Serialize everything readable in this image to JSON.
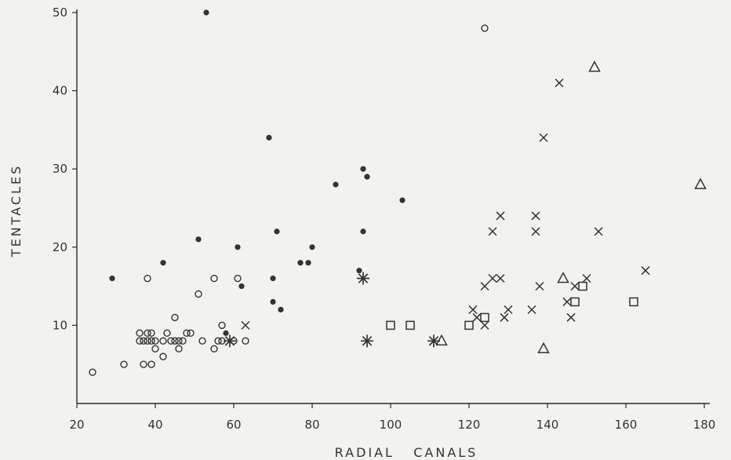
{
  "chart_data": {
    "type": "scatter",
    "title": "",
    "xlabel": "RADIAL   CANALS",
    "ylabel": "TENTACLES",
    "xlim": [
      20,
      180
    ],
    "ylim": [
      0,
      50
    ],
    "xticks": [
      "20",
      "40",
      "60",
      "80",
      "100",
      "120",
      "140",
      "160",
      "180"
    ],
    "yticks": [
      "10",
      "20",
      "30",
      "40",
      "50"
    ],
    "grid": false,
    "legend": "none",
    "color": "#333333",
    "series": [
      {
        "marker": "filled-circle",
        "points": [
          [
            29,
            16
          ],
          [
            42,
            18
          ],
          [
            51,
            21
          ],
          [
            53,
            50
          ],
          [
            58,
            9
          ],
          [
            61,
            20
          ],
          [
            62,
            15
          ],
          [
            69,
            34
          ],
          [
            70,
            16
          ],
          [
            70,
            13
          ],
          [
            71,
            22
          ],
          [
            72,
            12
          ],
          [
            77,
            18
          ],
          [
            79,
            18
          ],
          [
            80,
            20
          ],
          [
            86,
            28
          ],
          [
            92,
            17
          ],
          [
            93,
            22
          ],
          [
            93,
            30
          ],
          [
            94,
            29
          ],
          [
            103,
            26
          ]
        ]
      },
      {
        "marker": "open-circle",
        "points": [
          [
            24,
            4
          ],
          [
            32,
            5
          ],
          [
            36,
            9
          ],
          [
            36,
            8
          ],
          [
            37,
            5
          ],
          [
            37,
            8
          ],
          [
            38,
            16
          ],
          [
            38,
            9
          ],
          [
            38,
            8
          ],
          [
            39,
            9
          ],
          [
            39,
            8
          ],
          [
            39,
            5
          ],
          [
            40,
            7
          ],
          [
            40,
            8
          ],
          [
            42,
            6
          ],
          [
            42,
            8
          ],
          [
            43,
            9
          ],
          [
            44,
            8
          ],
          [
            45,
            11
          ],
          [
            45,
            8
          ],
          [
            46,
            8
          ],
          [
            46,
            7
          ],
          [
            47,
            8
          ],
          [
            48,
            9
          ],
          [
            49,
            9
          ],
          [
            51,
            14
          ],
          [
            52,
            8
          ],
          [
            55,
            16
          ],
          [
            55,
            7
          ],
          [
            56,
            8
          ],
          [
            57,
            10
          ],
          [
            57,
            8
          ],
          [
            60,
            8
          ],
          [
            61,
            16
          ],
          [
            63,
            8
          ],
          [
            124,
            48
          ]
        ]
      },
      {
        "marker": "cross",
        "points": [
          [
            63,
            10
          ],
          [
            121,
            12
          ],
          [
            122,
            11
          ],
          [
            124,
            15
          ],
          [
            124,
            10
          ],
          [
            126,
            16
          ],
          [
            126,
            22
          ],
          [
            128,
            16
          ],
          [
            128,
            24
          ],
          [
            129,
            11
          ],
          [
            130,
            12
          ],
          [
            136,
            12
          ],
          [
            137,
            24
          ],
          [
            137,
            22
          ],
          [
            138,
            15
          ],
          [
            139,
            34
          ],
          [
            143,
            41
          ],
          [
            145,
            13
          ],
          [
            146,
            11
          ],
          [
            147,
            15
          ],
          [
            150,
            16
          ],
          [
            153,
            22
          ],
          [
            165,
            17
          ]
        ]
      },
      {
        "marker": "square",
        "points": [
          [
            100,
            10
          ],
          [
            105,
            10
          ],
          [
            120,
            10
          ],
          [
            124,
            11
          ],
          [
            147,
            13
          ],
          [
            149,
            15
          ],
          [
            162,
            13
          ]
        ]
      },
      {
        "marker": "triangle",
        "points": [
          [
            113,
            8
          ],
          [
            139,
            7
          ],
          [
            144,
            16
          ],
          [
            152,
            43
          ],
          [
            179,
            28
          ]
        ]
      },
      {
        "marker": "asterisk",
        "points": [
          [
            59,
            8
          ],
          [
            93,
            16
          ],
          [
            94,
            8
          ],
          [
            111,
            8
          ]
        ]
      }
    ]
  }
}
